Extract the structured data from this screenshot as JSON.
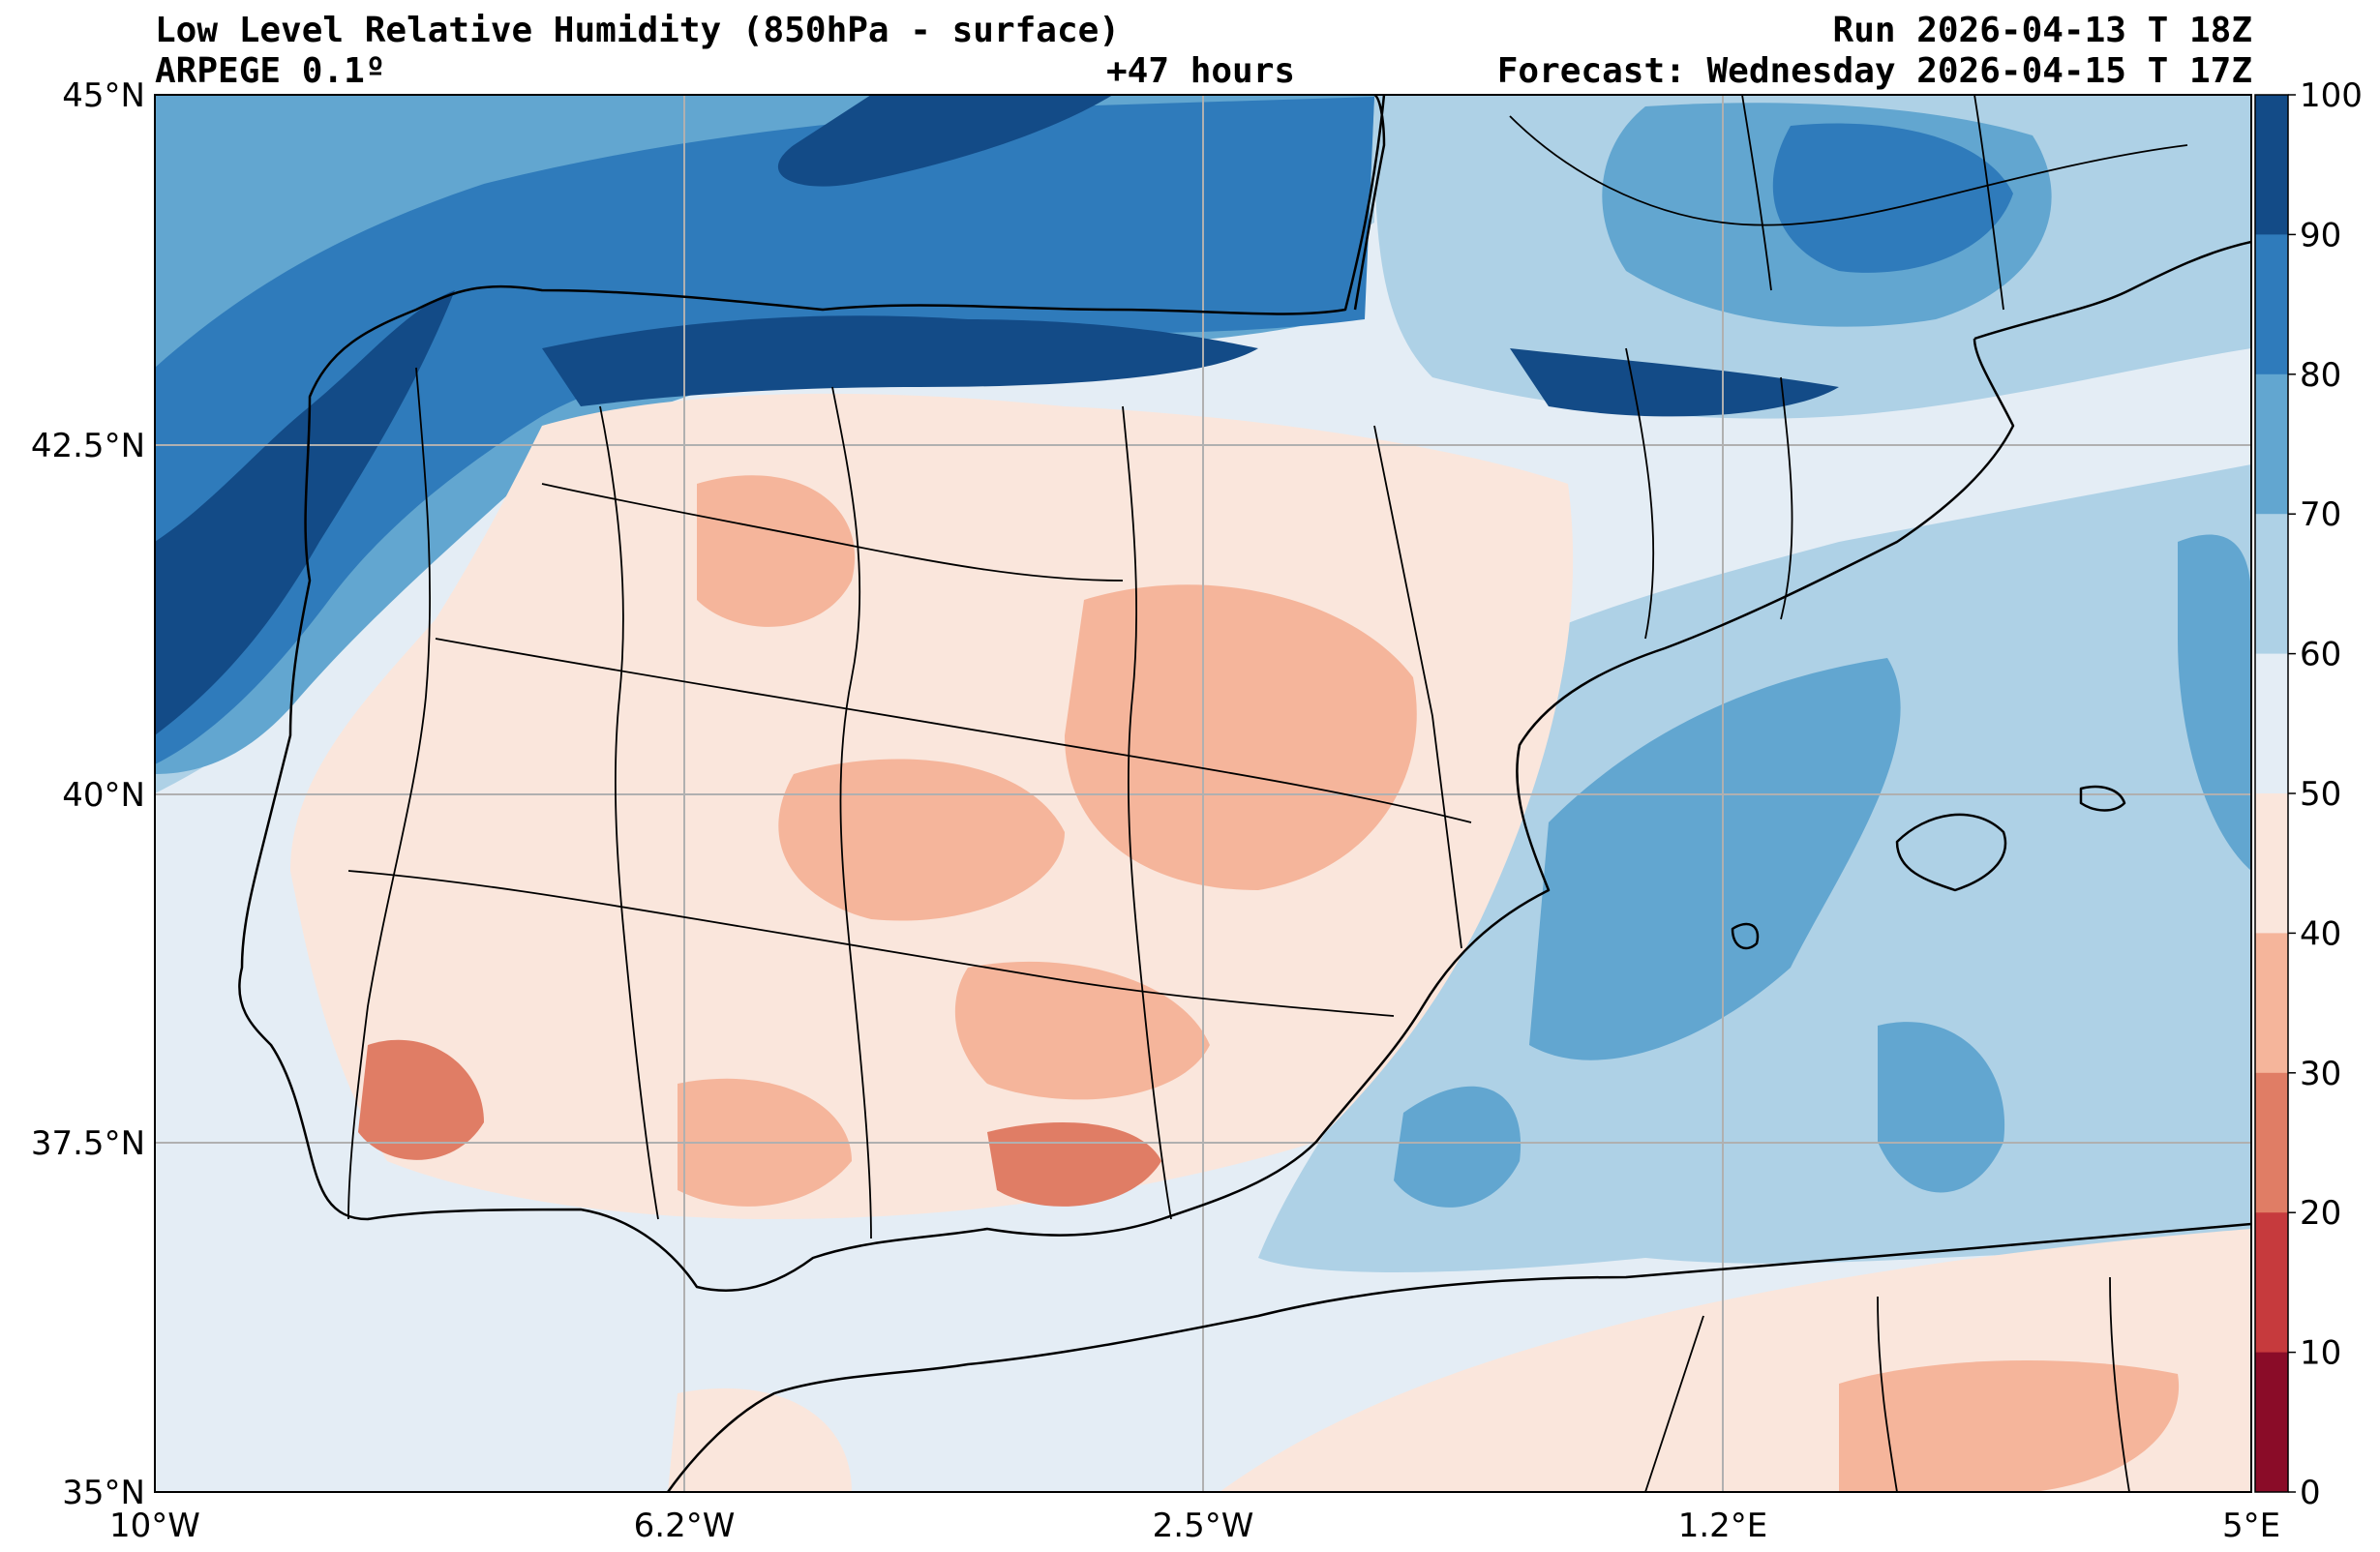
{
  "header": {
    "title": "Low Level Relative Humidity (850hPa - surface)",
    "model": "ARPEGE 0.1º",
    "lead_time": "+47 hours",
    "run": "Run 2026-04-13 T 18Z",
    "forecast": "Forecast: Wednesday 2026-04-15 T 17Z"
  },
  "axes": {
    "lat_labels": [
      "45°N",
      "42.5°N",
      "40°N",
      "37.5°N",
      "35°N"
    ],
    "lon_labels": [
      "10°W",
      "6.2°W",
      "2.5°W",
      "1.2°E",
      "5°E"
    ]
  },
  "colorbar": {
    "ticks": [
      "100",
      "90",
      "80",
      "70",
      "60",
      "50",
      "40",
      "30",
      "20",
      "10",
      "0"
    ],
    "colors": [
      "#134b87",
      "#2f7bbb",
      "#62a6d0",
      "#aed1e6",
      "#e4edf5",
      "#fae6dc",
      "#f5b59b",
      "#e07d65",
      "#c63a3d",
      "#8a0c28"
    ]
  },
  "chart_data": {
    "type": "heatmap",
    "variable": "Low Level Relative Humidity (850hPa - surface)",
    "units": "%",
    "levels": [
      0,
      10,
      20,
      30,
      40,
      50,
      60,
      70,
      80,
      90,
      100
    ],
    "lat_range": [
      35,
      45
    ],
    "lon_range": [
      -10,
      5
    ],
    "summary": {
      "atlantic_northwest": "90-100",
      "cantabrian_pyrenees": "80-100",
      "interior_meseta": "30-50",
      "andalusia_interior": "20-40",
      "mediterranean_sea": "60-80",
      "north_africa_coast": "40-60"
    }
  }
}
